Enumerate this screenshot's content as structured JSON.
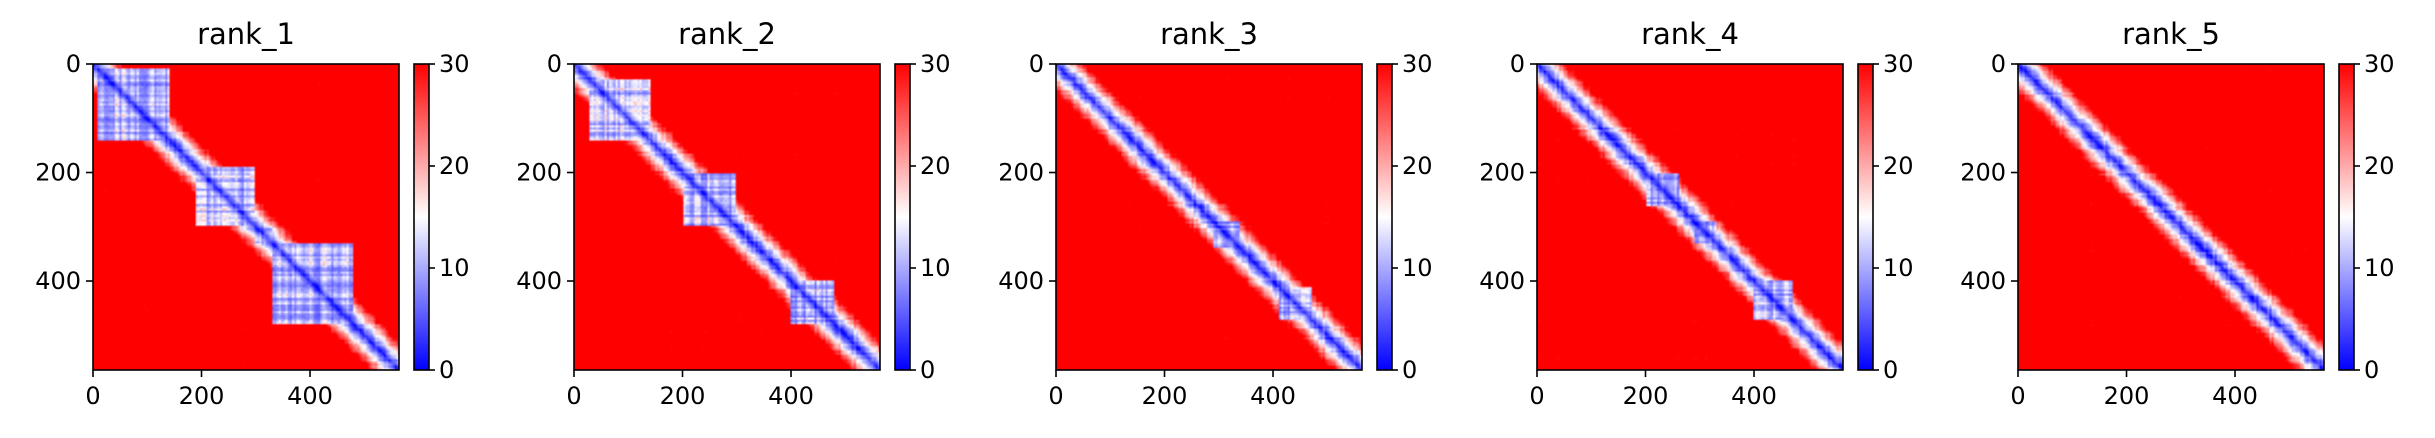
{
  "chart_data": [
    {
      "type": "heatmap",
      "title": "rank_1",
      "n": 564,
      "xlim": [
        0,
        564
      ],
      "ylim": [
        564,
        0
      ],
      "xticks": [
        0,
        200,
        400
      ],
      "yticks": [
        0,
        200,
        400
      ],
      "colorbar": {
        "min": 0,
        "max": 30,
        "ticks": [
          0,
          10,
          20,
          30
        ],
        "colormap": "bwr"
      },
      "low_blocks": [
        [
          10,
          140
        ],
        [
          190,
          300
        ],
        [
          300,
          330
        ],
        [
          330,
          480
        ],
        [
          420,
          480
        ]
      ],
      "notes": "distance-like matrix; low values (blue) near diagonal; large blue block around residues 330-480"
    },
    {
      "type": "heatmap",
      "title": "rank_2",
      "n": 564,
      "xlim": [
        0,
        564
      ],
      "ylim": [
        564,
        0
      ],
      "xticks": [
        0,
        200,
        400
      ],
      "yticks": [
        0,
        200,
        400
      ],
      "colorbar": {
        "min": 0,
        "max": 30,
        "ticks": [
          0,
          10,
          20,
          30
        ],
        "colormap": "bwr"
      },
      "low_blocks": [
        [
          30,
          140
        ],
        [
          200,
          300
        ],
        [
          400,
          480
        ]
      ],
      "notes": "blue block around residues 400-480"
    },
    {
      "type": "heatmap",
      "title": "rank_3",
      "n": 564,
      "xlim": [
        0,
        564
      ],
      "ylim": [
        564,
        0
      ],
      "xticks": [
        0,
        200,
        400
      ],
      "yticks": [
        0,
        200,
        400
      ],
      "colorbar": {
        "min": 0,
        "max": 30,
        "ticks": [
          0,
          10,
          20,
          30
        ],
        "colormap": "bwr"
      },
      "low_blocks": [
        [
          290,
          340
        ],
        [
          410,
          470
        ]
      ],
      "notes": "blue block around residues 300-340"
    },
    {
      "type": "heatmap",
      "title": "rank_4",
      "n": 564,
      "xlim": [
        0,
        564
      ],
      "ylim": [
        564,
        0
      ],
      "xticks": [
        0,
        200,
        400
      ],
      "yticks": [
        0,
        200,
        400
      ],
      "colorbar": {
        "min": 0,
        "max": 30,
        "ticks": [
          0,
          10,
          20,
          30
        ],
        "colormap": "bwr"
      },
      "low_blocks": [
        [
          200,
          260
        ],
        [
          290,
          330
        ],
        [
          400,
          470
        ]
      ],
      "notes": "several medium blocks along diagonal"
    },
    {
      "type": "heatmap",
      "title": "rank_5",
      "n": 564,
      "xlim": [
        0,
        564
      ],
      "ylim": [
        564,
        0
      ],
      "xticks": [
        0,
        200,
        400
      ],
      "yticks": [
        0,
        200,
        400
      ],
      "colorbar": {
        "min": 0,
        "max": 30,
        "ticks": [
          0,
          10,
          20,
          30
        ],
        "colormap": "bwr"
      },
      "low_blocks": [],
      "notes": "mostly red; only narrow diagonal band"
    }
  ]
}
